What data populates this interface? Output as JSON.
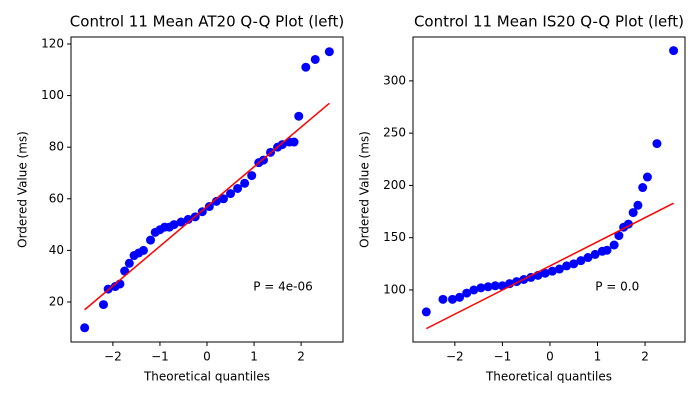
{
  "chart_data": [
    {
      "type": "scatter",
      "title": "Control 11 Mean AT20 Q-Q Plot (left)",
      "x_label": "Theoretical quantiles",
      "y_label": "Ordered Value (ms)",
      "x": [
        -2.6,
        -2.2,
        -2.1,
        -1.95,
        -1.85,
        -1.75,
        -1.65,
        -1.55,
        -1.45,
        -1.35,
        -1.2,
        -1.1,
        -1.0,
        -0.9,
        -0.8,
        -0.7,
        -0.55,
        -0.4,
        -0.25,
        -0.1,
        0.05,
        0.2,
        0.35,
        0.5,
        0.65,
        0.8,
        0.95,
        1.1,
        1.2,
        1.35,
        1.5,
        1.6,
        1.75,
        1.85,
        1.95,
        2.1,
        2.3,
        2.6
      ],
      "y": [
        10,
        19,
        25,
        26,
        27,
        32,
        35,
        38,
        39,
        40,
        44,
        47,
        48,
        49,
        49,
        50,
        51,
        52,
        53,
        55,
        57,
        59,
        60,
        62,
        64,
        66,
        69,
        74,
        75,
        78,
        80,
        81,
        82,
        82,
        92,
        111,
        114,
        117
      ],
      "color": "#0000ff",
      "fit_line": {
        "x": [
          -2.6,
          2.6
        ],
        "y": [
          17,
          97
        ],
        "color": "#ff0000"
      },
      "annotation": "P = 4e-06",
      "xlim": [
        -2.89,
        2.89
      ],
      "ylim": [
        4.5,
        122.7
      ],
      "xticks": [
        {
          "value": -2,
          "label": "−2"
        },
        {
          "value": -1,
          "label": "−1"
        },
        0,
        1,
        2
      ],
      "yticks": [
        20,
        40,
        60,
        80,
        100,
        120
      ]
    },
    {
      "type": "scatter",
      "title": "Control 11 Mean IS20 Q-Q Plot (left)",
      "x_label": "Theoretical quantiles",
      "y_label": "Ordered Value (ms)",
      "x": [
        -2.6,
        -2.25,
        -2.05,
        -1.9,
        -1.75,
        -1.6,
        -1.45,
        -1.3,
        -1.15,
        -1.0,
        -0.85,
        -0.7,
        -0.55,
        -0.4,
        -0.25,
        -0.1,
        0.05,
        0.2,
        0.35,
        0.5,
        0.65,
        0.8,
        0.95,
        1.1,
        1.2,
        1.35,
        1.45,
        1.55,
        1.65,
        1.75,
        1.85,
        1.95,
        2.05,
        2.25,
        2.6
      ],
      "y": [
        79,
        91,
        91,
        93,
        97,
        100,
        102,
        103,
        104,
        104,
        106,
        108,
        110,
        112,
        114,
        116,
        118,
        120,
        123,
        125,
        128,
        131,
        134,
        137,
        138,
        143,
        152,
        160,
        163,
        174,
        181,
        198,
        208,
        240,
        329
      ],
      "color": "#0000ff",
      "fit_line": {
        "x": [
          -2.6,
          2.6
        ],
        "y": [
          63,
          183
        ],
        "color": "#ff0000"
      },
      "annotation": "P = 0.0",
      "xlim": [
        -2.88,
        2.84
      ],
      "ylim": [
        50.2,
        342
      ],
      "xticks": [
        {
          "value": -2,
          "label": "−2"
        },
        {
          "value": -1,
          "label": "−1"
        },
        0,
        1,
        2
      ],
      "yticks": [
        100,
        150,
        200,
        250,
        300
      ]
    }
  ]
}
